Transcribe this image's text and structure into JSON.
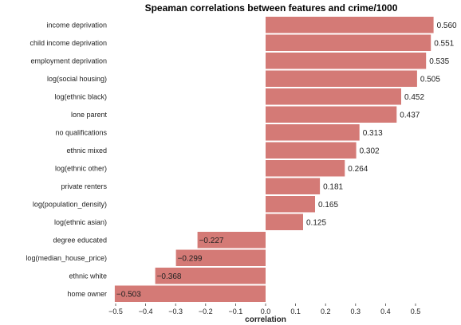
{
  "chart_data": {
    "type": "bar",
    "orientation": "horizontal",
    "title": "Speaman correlations between features and crime/1000",
    "xlabel": "correlation",
    "ylabel": "",
    "xlim": [
      -0.5,
      0.56
    ],
    "xticks": [
      "−0.5",
      "−0.4",
      "−0.3",
      "−0.2",
      "−0.1",
      "0.0",
      "0.1",
      "0.2",
      "0.3",
      "0.4",
      "0.5"
    ],
    "xtick_values": [
      -0.5,
      -0.4,
      -0.3,
      -0.2,
      -0.1,
      0.0,
      0.1,
      0.2,
      0.3,
      0.4,
      0.5
    ],
    "bar_color": "#d47a76",
    "grid": false,
    "categories": [
      "income deprivation",
      "child income deprivation",
      "employment deprivation",
      "log(social housing)",
      "log(ethnic black)",
      "lone parent",
      "no qualifications",
      "ethnic mixed",
      "log(ethnic other)",
      "private renters",
      "log(population_density)",
      "log(ethnic asian)",
      "degree educated",
      "log(median_house_price)",
      "ethnic white",
      "home owner"
    ],
    "values": [
      0.56,
      0.551,
      0.535,
      0.505,
      0.452,
      0.437,
      0.313,
      0.302,
      0.264,
      0.181,
      0.165,
      0.125,
      -0.227,
      -0.299,
      -0.368,
      -0.503
    ],
    "value_labels": [
      "0.560",
      "0.551",
      "0.535",
      "0.505",
      "0.452",
      "0.437",
      "0.313",
      "0.302",
      "0.264",
      "0.181",
      "0.165",
      "0.125",
      "−0.227",
      "−0.299",
      "−0.368",
      "−0.503"
    ]
  }
}
